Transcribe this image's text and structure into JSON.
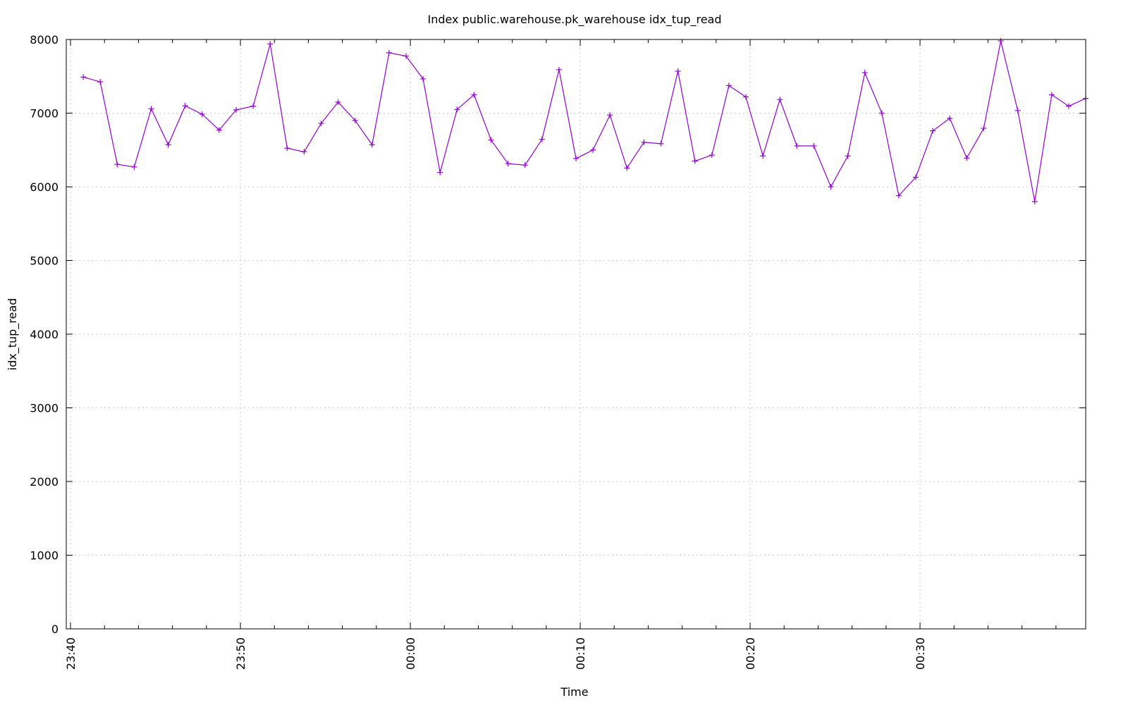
{
  "chart_data": {
    "type": "line",
    "title": "Index public.warehouse.pk_warehouse idx_tup_read",
    "xlabel": "Time",
    "ylabel": "idx_tup_read",
    "ylim": [
      0,
      8000
    ],
    "yticks": [
      0,
      1000,
      2000,
      3000,
      4000,
      5000,
      6000,
      7000,
      8000
    ],
    "xlim": [
      "23:39:45",
      "00:39:45"
    ],
    "xticks": [
      "23:40",
      "23:50",
      "00:00",
      "00:10",
      "00:20",
      "00:30"
    ],
    "grid": true,
    "color": "#9400d3",
    "x": [
      "23:40:45",
      "23:41:45",
      "23:42:45",
      "23:43:45",
      "23:44:45",
      "23:45:45",
      "23:46:45",
      "23:47:45",
      "23:48:45",
      "23:49:45",
      "23:50:45",
      "23:51:45",
      "23:52:45",
      "23:53:45",
      "23:54:45",
      "23:55:45",
      "23:56:45",
      "23:57:45",
      "23:58:45",
      "23:59:45",
      "00:00:45",
      "00:01:45",
      "00:02:45",
      "00:03:45",
      "00:04:45",
      "00:05:45",
      "00:06:45",
      "00:07:45",
      "00:08:45",
      "00:09:45",
      "00:10:45",
      "00:11:45",
      "00:12:45",
      "00:13:45",
      "00:14:45",
      "00:15:45",
      "00:16:45",
      "00:17:45",
      "00:18:45",
      "00:19:45",
      "00:20:45",
      "00:21:45",
      "00:22:45",
      "00:23:45",
      "00:24:45",
      "00:25:45",
      "00:26:45",
      "00:27:45",
      "00:28:45",
      "00:29:45",
      "00:30:45",
      "00:31:45",
      "00:32:45",
      "00:33:45",
      "00:34:45",
      "00:35:45",
      "00:36:45",
      "00:37:45",
      "00:38:45",
      "00:39:45"
    ],
    "series": [
      {
        "values": [
          7490,
          7425,
          6305,
          6270,
          7060,
          6570,
          7100,
          6985,
          6770,
          7045,
          7095,
          7940,
          6525,
          6475,
          6860,
          7150,
          6900,
          6570,
          7820,
          7775,
          7465,
          6195,
          7050,
          7250,
          6635,
          6315,
          6295,
          6645,
          7590,
          6385,
          6500,
          6975,
          6255,
          6605,
          6585,
          7570,
          6350,
          6430,
          7375,
          7220,
          6420,
          7185,
          6555,
          6555,
          6000,
          6420,
          7550,
          7000,
          5880,
          6130,
          6760,
          6930,
          6390,
          6795,
          7980,
          7035,
          5800,
          7250,
          7095,
          7200
        ]
      }
    ]
  }
}
